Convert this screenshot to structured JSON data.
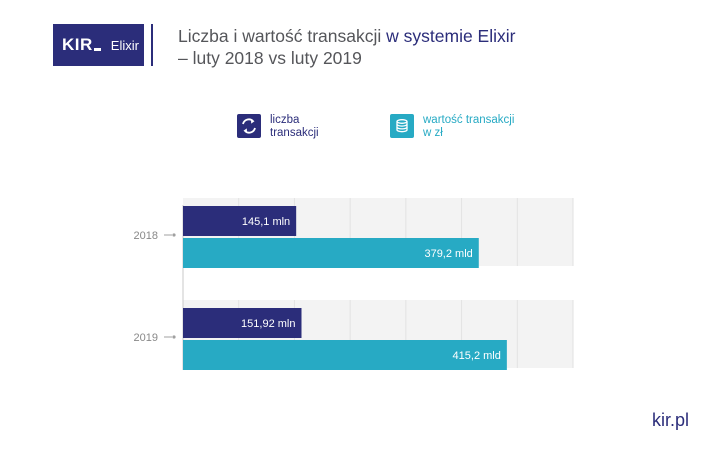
{
  "header": {
    "logo_kir": "KIR",
    "logo_elixir": "Elixir",
    "title_part1": "Liczba i wartość transakcji ",
    "title_part2": "w systemie Elixir",
    "title_line2": "– luty 2018 vs luty 2019"
  },
  "legend": [
    {
      "label": "liczba transakcji",
      "icon": "exchange-arrows-icon",
      "color": "#2b2d7a",
      "text_color": "#2b2d7a"
    },
    {
      "label": "wartość transakcji w zł",
      "icon": "coin-stack-icon",
      "color": "#27aac4",
      "text_color": "#27aac4"
    }
  ],
  "chart_data": {
    "type": "bar",
    "orientation": "horizontal",
    "categories": [
      "2018",
      "2019"
    ],
    "series": [
      {
        "name": "liczba transakcji",
        "values": [
          145.1,
          151.92
        ],
        "labels": [
          "145,1 mln",
          "151,92 mln"
        ],
        "color": "#2b2d7a"
      },
      {
        "name": "wartość transakcji w zł",
        "values": [
          379.2,
          415.2
        ],
        "labels": [
          "379,2 mld",
          "415,2 mld"
        ],
        "color": "#27aac4"
      }
    ],
    "xlim": [
      0,
      500
    ],
    "grid": true
  },
  "footer": {
    "site": "kir.pl"
  }
}
